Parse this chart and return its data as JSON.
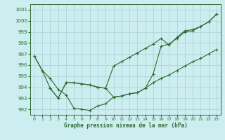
{
  "title": "Graphe pression niveau de la mer (hPa)",
  "bg_color": "#cceef0",
  "line_color": "#2d6a2d",
  "grid_color": "#b0d8dc",
  "xlim": [
    -0.5,
    23.5
  ],
  "ylim": [
    991.5,
    1001.5
  ],
  "yticks": [
    992,
    993,
    994,
    995,
    996,
    997,
    998,
    999,
    1000,
    1001
  ],
  "xticks": [
    0,
    1,
    2,
    3,
    4,
    5,
    6,
    7,
    8,
    9,
    10,
    11,
    12,
    13,
    14,
    15,
    16,
    17,
    18,
    19,
    20,
    21,
    22,
    23
  ],
  "series1_x": [
    0,
    1,
    2,
    3,
    4,
    5,
    6,
    7,
    8,
    9,
    10,
    11,
    12,
    13,
    14,
    15,
    16,
    17,
    18,
    19,
    20,
    21,
    22,
    23
  ],
  "series1_y": [
    996.8,
    995.5,
    994.8,
    993.8,
    993.3,
    992.1,
    992.0,
    991.9,
    992.3,
    992.5,
    993.1,
    993.2,
    993.4,
    993.5,
    993.9,
    994.4,
    994.8,
    995.1,
    995.5,
    995.9,
    996.3,
    996.6,
    997.0,
    997.4
  ],
  "series2_x": [
    0,
    1,
    2,
    3,
    4,
    5,
    6,
    7,
    8,
    9,
    10,
    11,
    12,
    13,
    14,
    15,
    16,
    17,
    18,
    19,
    20,
    21,
    22,
    23
  ],
  "series2_y": [
    996.8,
    995.5,
    993.9,
    993.0,
    994.4,
    994.4,
    994.3,
    994.2,
    994.0,
    993.9,
    993.1,
    993.2,
    993.4,
    993.5,
    993.9,
    995.2,
    997.7,
    997.9,
    998.4,
    999.0,
    999.1,
    999.5,
    999.9,
    1000.6
  ],
  "series3_x": [
    2,
    3,
    4,
    5,
    6,
    7,
    8,
    9,
    10,
    11,
    12,
    13,
    14,
    15,
    16,
    17,
    18,
    19,
    20,
    21,
    22,
    23
  ],
  "series3_y": [
    993.9,
    993.0,
    994.4,
    994.4,
    994.3,
    994.2,
    994.0,
    993.9,
    995.9,
    996.3,
    996.7,
    997.1,
    997.5,
    997.9,
    998.4,
    997.8,
    998.5,
    999.1,
    999.2,
    999.5,
    999.9,
    1000.6
  ]
}
